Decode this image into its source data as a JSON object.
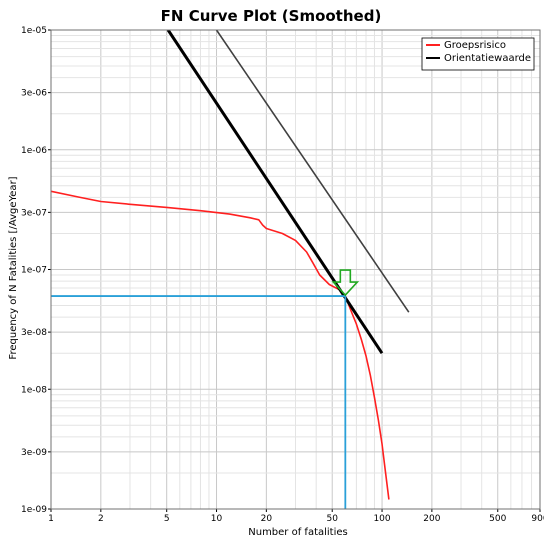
{
  "chart_data": {
    "type": "line",
    "title": "FN Curve Plot (Smoothed)",
    "xlabel": "Number of fatalities",
    "ylabel": "Frequency of N Fatalities [/AvgeYear]",
    "xscale": "log",
    "yscale": "log",
    "xlim": [
      1,
      900
    ],
    "ylim": [
      1e-09,
      1e-05
    ],
    "x_tick_labels": [
      "1",
      "2",
      "5",
      "10",
      "20",
      "50",
      "100",
      "200",
      "500",
      "900"
    ],
    "x_tick_values": [
      1,
      2,
      5,
      10,
      20,
      50,
      100,
      200,
      500,
      900
    ],
    "y_tick_labels": [
      "1e-09",
      "3e-09",
      "1e-08",
      "3e-08",
      "1e-07",
      "3e-07",
      "1e-06",
      "3e-06",
      "1e-05"
    ],
    "y_tick_values": [
      1e-09,
      3e-09,
      1e-08,
      3e-08,
      1e-07,
      3e-07,
      1e-06,
      3e-06,
      1e-05
    ],
    "grid": true,
    "legend_position": "top-right",
    "series": [
      {
        "name": "Groepsrisico",
        "color": "#ff2020",
        "width": 1.6,
        "x": [
          1,
          1.5,
          2,
          3,
          5,
          8,
          12,
          16,
          18,
          19,
          20,
          25,
          30,
          35,
          38,
          42,
          48,
          55,
          60,
          65,
          70,
          75,
          80,
          85,
          90,
          95,
          100,
          105,
          110
        ],
        "y": [
          4.5e-07,
          4e-07,
          3.7e-07,
          3.5e-07,
          3.3e-07,
          3.1e-07,
          2.9e-07,
          2.7e-07,
          2.6e-07,
          2.35e-07,
          2.2e-07,
          2e-07,
          1.75e-07,
          1.4e-07,
          1.15e-07,
          9e-08,
          7.5e-08,
          6.8e-08,
          6e-08,
          4.5e-08,
          3.5e-08,
          2.6e-08,
          1.9e-08,
          1.3e-08,
          8.5e-09,
          5.5e-09,
          3.5e-09,
          2e-09,
          1.2e-09
        ]
      },
      {
        "name": "Orientatiewaarde",
        "color": "#000000",
        "width": 3,
        "x": [
          5.1,
          100
        ],
        "y": [
          1e-05,
          2e-08
        ]
      },
      {
        "name": "",
        "color": "#404040",
        "width": 1.6,
        "x": [
          10,
          145
        ],
        "y": [
          1e-05,
          4.4e-08
        ]
      }
    ],
    "annotations": {
      "crosshair": {
        "x": 60,
        "y": 6e-08,
        "color": "#2aa0d8"
      },
      "arrow": {
        "x": 60,
        "y": 6e-08,
        "color": "#22aa22"
      }
    }
  }
}
